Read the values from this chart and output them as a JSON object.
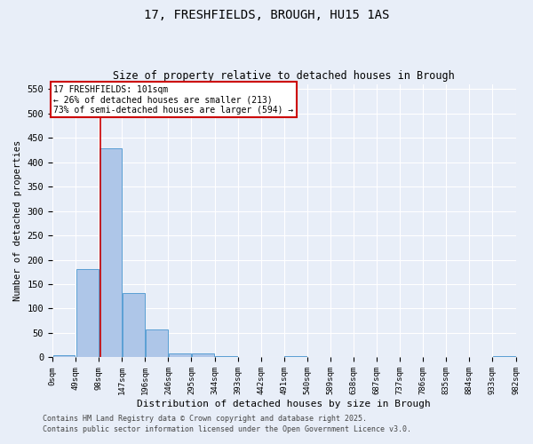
{
  "title_line1": "17, FRESHFIELDS, BROUGH, HU15 1AS",
  "title_line2": "Size of property relative to detached houses in Brough",
  "xlabel": "Distribution of detached houses by size in Brough",
  "ylabel": "Number of detached properties",
  "bar_values": [
    5,
    180,
    428,
    132,
    58,
    8,
    8,
    2,
    0,
    0,
    3,
    0,
    0,
    0,
    0,
    0,
    0,
    0,
    0,
    3
  ],
  "bin_edges": [
    0,
    49,
    98,
    147,
    196,
    245,
    294,
    343,
    392,
    441,
    490,
    539,
    588,
    637,
    686,
    735,
    784,
    833,
    882,
    931,
    980
  ],
  "tick_labels": [
    "0sqm",
    "49sqm",
    "98sqm",
    "147sqm",
    "196sqm",
    "246sqm",
    "295sqm",
    "344sqm",
    "393sqm",
    "442sqm",
    "491sqm",
    "540sqm",
    "589sqm",
    "638sqm",
    "687sqm",
    "737sqm",
    "786sqm",
    "835sqm",
    "884sqm",
    "933sqm",
    "982sqm"
  ],
  "bar_color": "#aec6e8",
  "bar_edge_color": "#5a9fd4",
  "background_color": "#e8eef8",
  "grid_color": "#ffffff",
  "property_sqm": 101,
  "vline_color": "#cc0000",
  "annotation_text": "17 FRESHFIELDS: 101sqm\n← 26% of detached houses are smaller (213)\n73% of semi-detached houses are larger (594) →",
  "annotation_box_color": "#cc0000",
  "annotation_text_color": "#000000",
  "ylim": [
    0,
    560
  ],
  "yticks": [
    0,
    50,
    100,
    150,
    200,
    250,
    300,
    350,
    400,
    450,
    500,
    550
  ],
  "footer_line1": "Contains HM Land Registry data © Crown copyright and database right 2025.",
  "footer_line2": "Contains public sector information licensed under the Open Government Licence v3.0."
}
